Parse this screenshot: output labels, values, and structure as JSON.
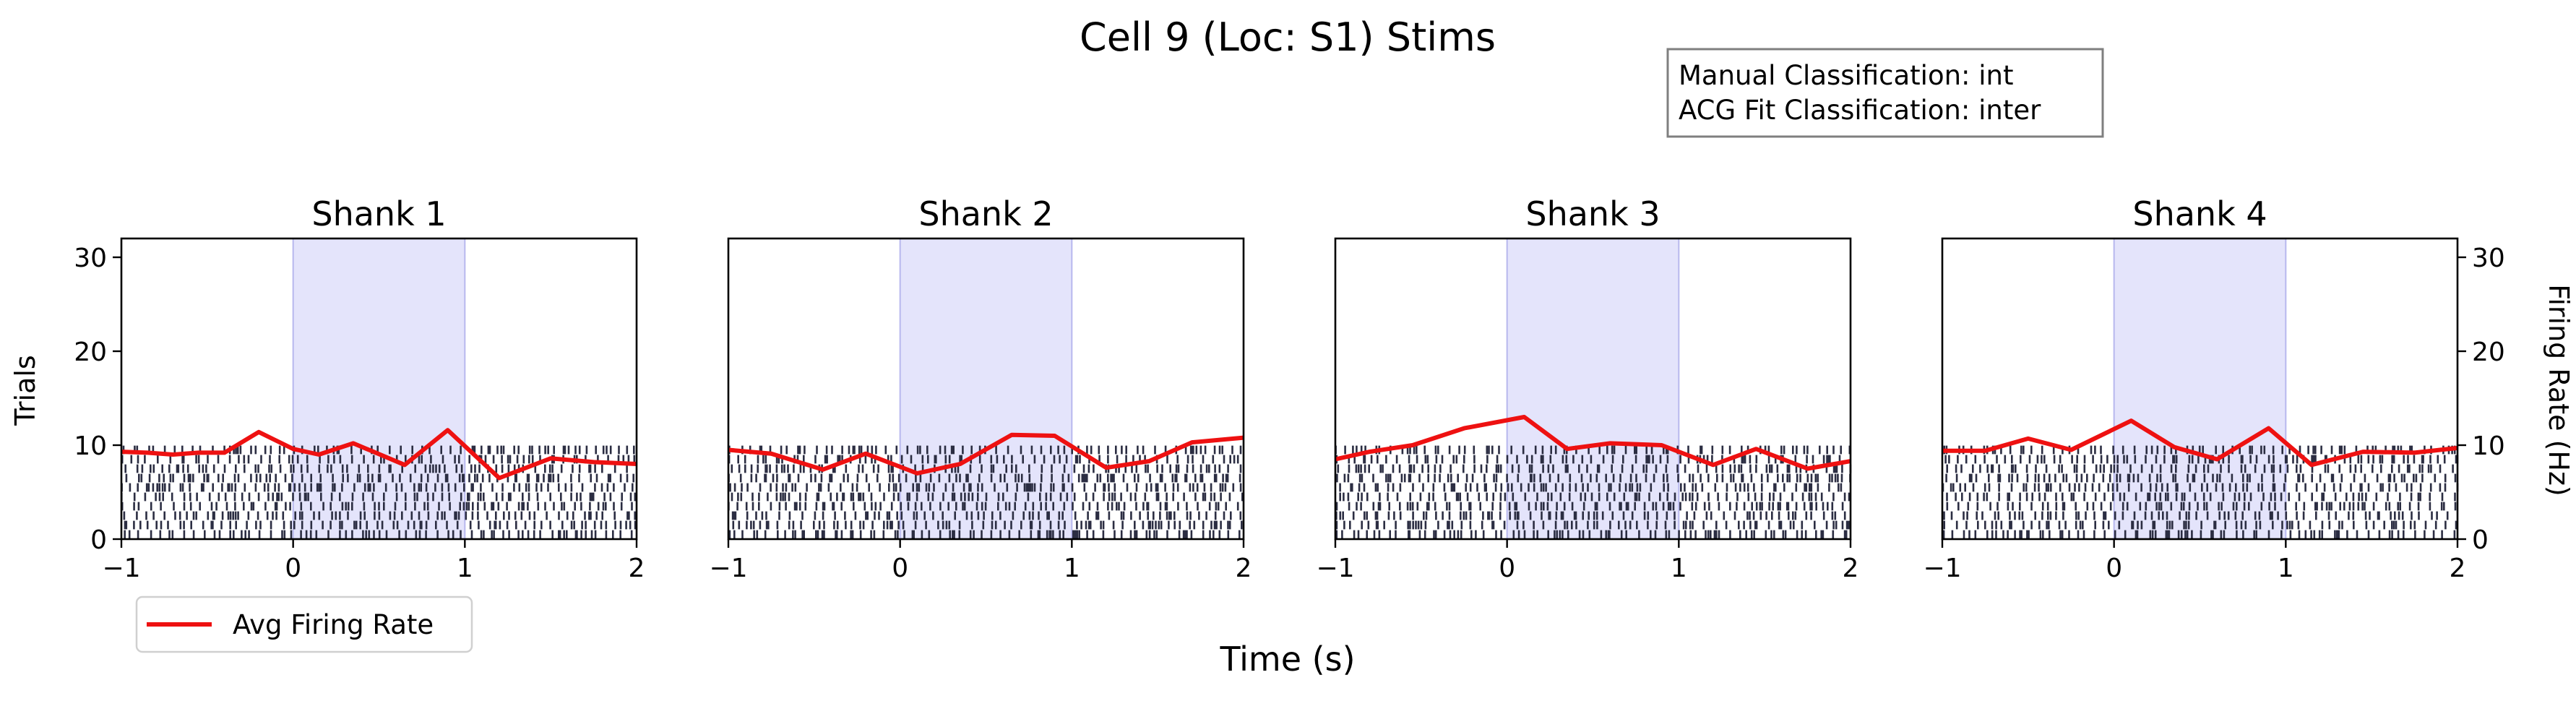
{
  "figure": {
    "title": "Cell 9 (Loc: S1) Stims",
    "xlabel": "Time (s)",
    "ylabel_left": "Trials",
    "ylabel_right": "Firing Rate (Hz)"
  },
  "info_box": {
    "line1": "Manual Classification: int",
    "line2": "ACG Fit Classification: inter"
  },
  "legend": {
    "label": "Avg Firing Rate",
    "placement": "lower-left"
  },
  "colors": {
    "rate_line": "#ee1111",
    "raster": "#2b2d42",
    "stim_fill": "#e4e4fb",
    "stim_edge": "#b8b8ee"
  },
  "chart_data": [
    {
      "type": "line",
      "title": "Shank 1",
      "xlim": [
        -1,
        2
      ],
      "ylim": [
        0,
        32
      ],
      "xticks": [
        -1,
        0,
        1,
        2
      ],
      "yticks": [
        0,
        10,
        20,
        30
      ],
      "stim_window": [
        0,
        1
      ],
      "raster_trials": 10,
      "series": [
        {
          "name": "Avg Firing Rate",
          "x": [
            -1.0,
            -0.85,
            -0.7,
            -0.55,
            -0.4,
            -0.2,
            0.0,
            0.15,
            0.35,
            0.65,
            0.9,
            1.2,
            1.5,
            1.75,
            2.0
          ],
          "y": [
            9.3,
            9.2,
            9.0,
            9.2,
            9.2,
            11.4,
            9.6,
            9.0,
            10.2,
            7.9,
            11.6,
            6.5,
            8.6,
            8.2,
            8.0
          ]
        }
      ]
    },
    {
      "type": "line",
      "title": "Shank 2",
      "xlim": [
        -1,
        2
      ],
      "ylim": [
        0,
        32
      ],
      "xticks": [
        -1,
        0,
        1,
        2
      ],
      "yticks": [
        0,
        10,
        20,
        30
      ],
      "stim_window": [
        0,
        1
      ],
      "raster_trials": 10,
      "series": [
        {
          "name": "Avg Firing Rate",
          "x": [
            -1.0,
            -0.75,
            -0.45,
            -0.2,
            0.1,
            0.35,
            0.65,
            0.9,
            1.2,
            1.45,
            1.7,
            2.0
          ],
          "y": [
            9.5,
            9.1,
            7.4,
            9.1,
            7.0,
            8.0,
            11.1,
            11.0,
            7.6,
            8.3,
            10.3,
            10.8
          ]
        }
      ]
    },
    {
      "type": "line",
      "title": "Shank 3",
      "xlim": [
        -1,
        2
      ],
      "ylim": [
        0,
        32
      ],
      "xticks": [
        -1,
        0,
        1,
        2
      ],
      "yticks": [
        0,
        10,
        20,
        30
      ],
      "stim_window": [
        0,
        1
      ],
      "raster_trials": 10,
      "series": [
        {
          "name": "Avg Firing Rate",
          "x": [
            -1.0,
            -0.8,
            -0.55,
            -0.25,
            0.1,
            0.35,
            0.6,
            0.9,
            1.2,
            1.45,
            1.75,
            2.0
          ],
          "y": [
            8.5,
            9.3,
            10.0,
            11.8,
            13.0,
            9.6,
            10.2,
            10.0,
            7.9,
            9.6,
            7.5,
            8.3
          ]
        }
      ]
    },
    {
      "type": "line",
      "title": "Shank 4",
      "xlim": [
        -1,
        2
      ],
      "ylim": [
        0,
        32
      ],
      "xticks": [
        -1,
        0,
        1,
        2
      ],
      "yticks": [
        0,
        10,
        20,
        30
      ],
      "stim_window": [
        0,
        1
      ],
      "raster_trials": 10,
      "series": [
        {
          "name": "Avg Firing Rate",
          "x": [
            -1.0,
            -0.75,
            -0.5,
            -0.25,
            0.1,
            0.35,
            0.6,
            0.9,
            1.15,
            1.45,
            1.75,
            2.0
          ],
          "y": [
            9.4,
            9.4,
            10.7,
            9.5,
            12.6,
            9.8,
            8.5,
            11.8,
            7.9,
            9.3,
            9.2,
            9.7
          ]
        }
      ]
    }
  ]
}
